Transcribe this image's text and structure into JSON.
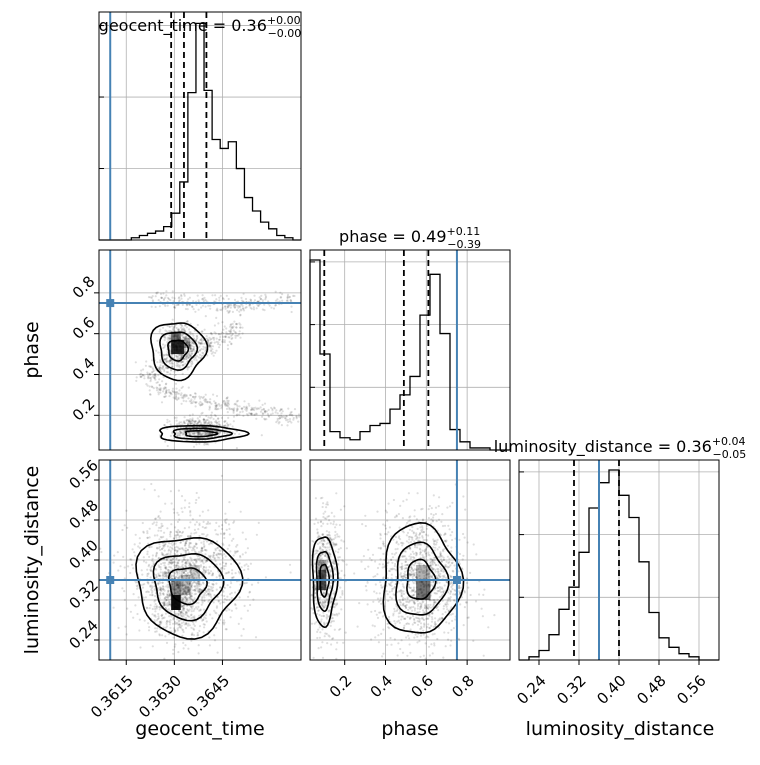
{
  "chart_data": {
    "type": "corner",
    "parameters": [
      {
        "name": "geocent_time",
        "title_label": "geocent_time",
        "title_value": "0.36",
        "title_upper": "+0.00",
        "title_lower": "−0.00",
        "range": [
          0.36065,
          0.36695
        ],
        "ticks": [
          0.3615,
          0.363,
          0.3645
        ],
        "tick_labels": [
          "0.3615",
          "0.3630",
          "0.3645"
        ],
        "truth": 0.361,
        "quantiles": [
          0.3629,
          0.3633,
          0.364
        ],
        "hist_values": [
          0,
          0,
          0,
          0,
          1,
          2,
          3,
          4,
          6,
          12,
          26,
          66,
          97,
          67,
          45,
          41,
          44,
          32,
          19,
          13,
          8,
          5,
          2,
          1,
          0
        ]
      },
      {
        "name": "phase",
        "title_label": "phase",
        "title_value": "0.49",
        "title_upper": "+0.11",
        "title_lower": "−0.39",
        "range": [
          0.03,
          1.01
        ],
        "ticks": [
          0.2,
          0.4,
          0.6,
          0.8
        ],
        "tick_labels": [
          "0.2",
          "0.4",
          "0.6",
          "0.8"
        ],
        "truth": 0.75,
        "quantiles": [
          0.1,
          0.49,
          0.61
        ],
        "hist_values": [
          93,
          47,
          9,
          6,
          5,
          9,
          12,
          13,
          20,
          27,
          36,
          66,
          86,
          57,
          10,
          4,
          1,
          1,
          0,
          0
        ]
      },
      {
        "name": "luminosity_distance",
        "title_label": "luminosity_distance",
        "title_value": "0.36",
        "title_upper": "+0.04",
        "title_lower": "−0.05",
        "range": [
          0.2,
          0.6
        ],
        "ticks": [
          0.24,
          0.32,
          0.4,
          0.48,
          0.56
        ],
        "tick_labels": [
          "0.24",
          "0.32",
          "0.40",
          "0.48",
          "0.56"
        ],
        "truth": 0.36,
        "quantiles": [
          0.31,
          0.36,
          0.4
        ],
        "hist_values": [
          0,
          1,
          3,
          8,
          16,
          23,
          34,
          48,
          56,
          60,
          52,
          45,
          31,
          15,
          7,
          4,
          2,
          1,
          0,
          0
        ]
      }
    ],
    "truth_color": "#4682b4",
    "grid": true
  }
}
